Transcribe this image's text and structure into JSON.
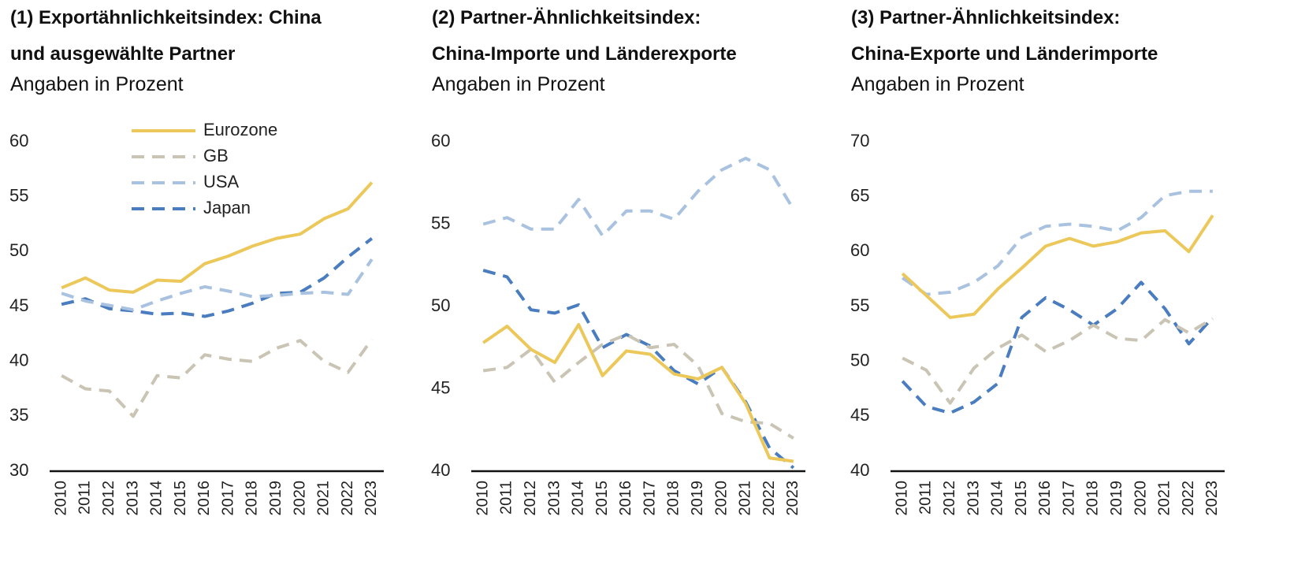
{
  "chart_data": [
    {
      "type": "line",
      "title": [
        "(1) Exportähnlichkeitsindex: China",
        "und ausgewählte Partner"
      ],
      "subtitle": "Angaben in Prozent",
      "categories": [
        "2010",
        "2011",
        "2012",
        "2013",
        "2014",
        "2015",
        "2016",
        "2017",
        "2018",
        "2019",
        "2020",
        "2021",
        "2022",
        "2023"
      ],
      "ylim": [
        30,
        60
      ],
      "yticks": [
        30,
        35,
        40,
        45,
        50,
        55,
        60
      ],
      "legend": "upper left",
      "series": [
        {
          "name": "Eurozone",
          "color": "#ecc85a",
          "dashed": false,
          "values": [
            46.7,
            47.6,
            46.5,
            46.3,
            47.4,
            47.3,
            48.9,
            49.6,
            50.5,
            51.2,
            51.6,
            53.0,
            53.9,
            56.3
          ]
        },
        {
          "name": "GB",
          "color": "#c9c4b3",
          "dashed": true,
          "values": [
            38.7,
            37.5,
            37.3,
            35.0,
            38.7,
            38.5,
            40.6,
            40.2,
            40.0,
            41.2,
            41.9,
            40.0,
            39.0,
            42.0
          ]
        },
        {
          "name": "USA",
          "color": "#a9c2e0",
          "dashed": true,
          "values": [
            46.2,
            45.5,
            45.1,
            44.7,
            45.5,
            46.2,
            46.8,
            46.4,
            45.9,
            46.0,
            46.2,
            46.3,
            46.1,
            49.3
          ]
        },
        {
          "name": "Japan",
          "color": "#4a7dbf",
          "dashed": true,
          "values": [
            45.2,
            45.7,
            44.8,
            44.6,
            44.3,
            44.4,
            44.1,
            44.6,
            45.3,
            46.2,
            46.3,
            47.6,
            49.5,
            51.2
          ]
        }
      ]
    },
    {
      "type": "line",
      "title": [
        "(2) Partner-Ähnlichkeitsindex:",
        "China-Importe und Länderexporte"
      ],
      "subtitle": "Angaben in Prozent",
      "categories": [
        "2010",
        "2011",
        "2012",
        "2013",
        "2014",
        "2015",
        "2016",
        "2017",
        "2018",
        "2019",
        "2020",
        "2021",
        "2022",
        "2023"
      ],
      "ylim": [
        40,
        60
      ],
      "yticks": [
        40,
        45,
        50,
        55,
        60
      ],
      "series": [
        {
          "name": "Eurozone",
          "color": "#ecc85a",
          "dashed": false,
          "values": [
            47.8,
            48.8,
            47.4,
            46.6,
            48.9,
            45.8,
            47.3,
            47.1,
            45.9,
            45.6,
            46.3,
            44.1,
            40.8,
            40.6
          ]
        },
        {
          "name": "GB",
          "color": "#c9c4b3",
          "dashed": true,
          "values": [
            46.1,
            46.3,
            47.4,
            45.4,
            46.6,
            47.7,
            48.3,
            47.5,
            47.7,
            46.4,
            43.5,
            43.0,
            42.9,
            42.0
          ]
        },
        {
          "name": "USA",
          "color": "#a9c2e0",
          "dashed": true,
          "values": [
            55.0,
            55.4,
            54.7,
            54.7,
            56.5,
            54.3,
            55.8,
            55.8,
            55.3,
            57.0,
            58.3,
            59.0,
            58.3,
            55.9
          ]
        },
        {
          "name": "Japan",
          "color": "#4a7dbf",
          "dashed": true,
          "values": [
            52.2,
            51.8,
            49.8,
            49.6,
            50.1,
            47.5,
            48.3,
            47.6,
            46.1,
            45.3,
            46.3,
            44.2,
            41.4,
            40.2
          ]
        }
      ]
    },
    {
      "type": "line",
      "title": [
        "(3) Partner-Ähnlichkeitsindex:",
        "China-Exporte und Länderimporte"
      ],
      "subtitle": "Angaben in Prozent",
      "categories": [
        "2010",
        "2011",
        "2012",
        "2013",
        "2014",
        "2015",
        "2016",
        "2017",
        "2018",
        "2019",
        "2020",
        "2021",
        "2022",
        "2023"
      ],
      "ylim": [
        40,
        70
      ],
      "yticks": [
        40,
        45,
        50,
        55,
        60,
        65,
        70
      ],
      "series": [
        {
          "name": "Eurozone",
          "color": "#ecc85a",
          "dashed": false,
          "values": [
            58.0,
            56.0,
            54.0,
            54.3,
            56.6,
            58.5,
            60.5,
            61.2,
            60.5,
            60.9,
            61.7,
            61.9,
            60.0,
            63.3
          ]
        },
        {
          "name": "GB",
          "color": "#c9c4b3",
          "dashed": true,
          "values": [
            50.3,
            49.2,
            46.2,
            49.4,
            51.2,
            52.4,
            50.9,
            51.9,
            53.3,
            52.1,
            51.9,
            53.8,
            52.6,
            53.9
          ]
        },
        {
          "name": "USA",
          "color": "#a9c2e0",
          "dashed": true,
          "values": [
            57.6,
            56.1,
            56.3,
            57.2,
            58.7,
            61.3,
            62.3,
            62.5,
            62.3,
            61.9,
            63.1,
            65.1,
            65.5,
            65.5
          ]
        },
        {
          "name": "Japan",
          "color": "#4a7dbf",
          "dashed": true,
          "values": [
            48.2,
            45.9,
            45.3,
            46.3,
            48.0,
            54.0,
            55.8,
            54.7,
            53.3,
            54.8,
            57.2,
            54.8,
            51.6,
            54.0
          ]
        }
      ]
    }
  ]
}
